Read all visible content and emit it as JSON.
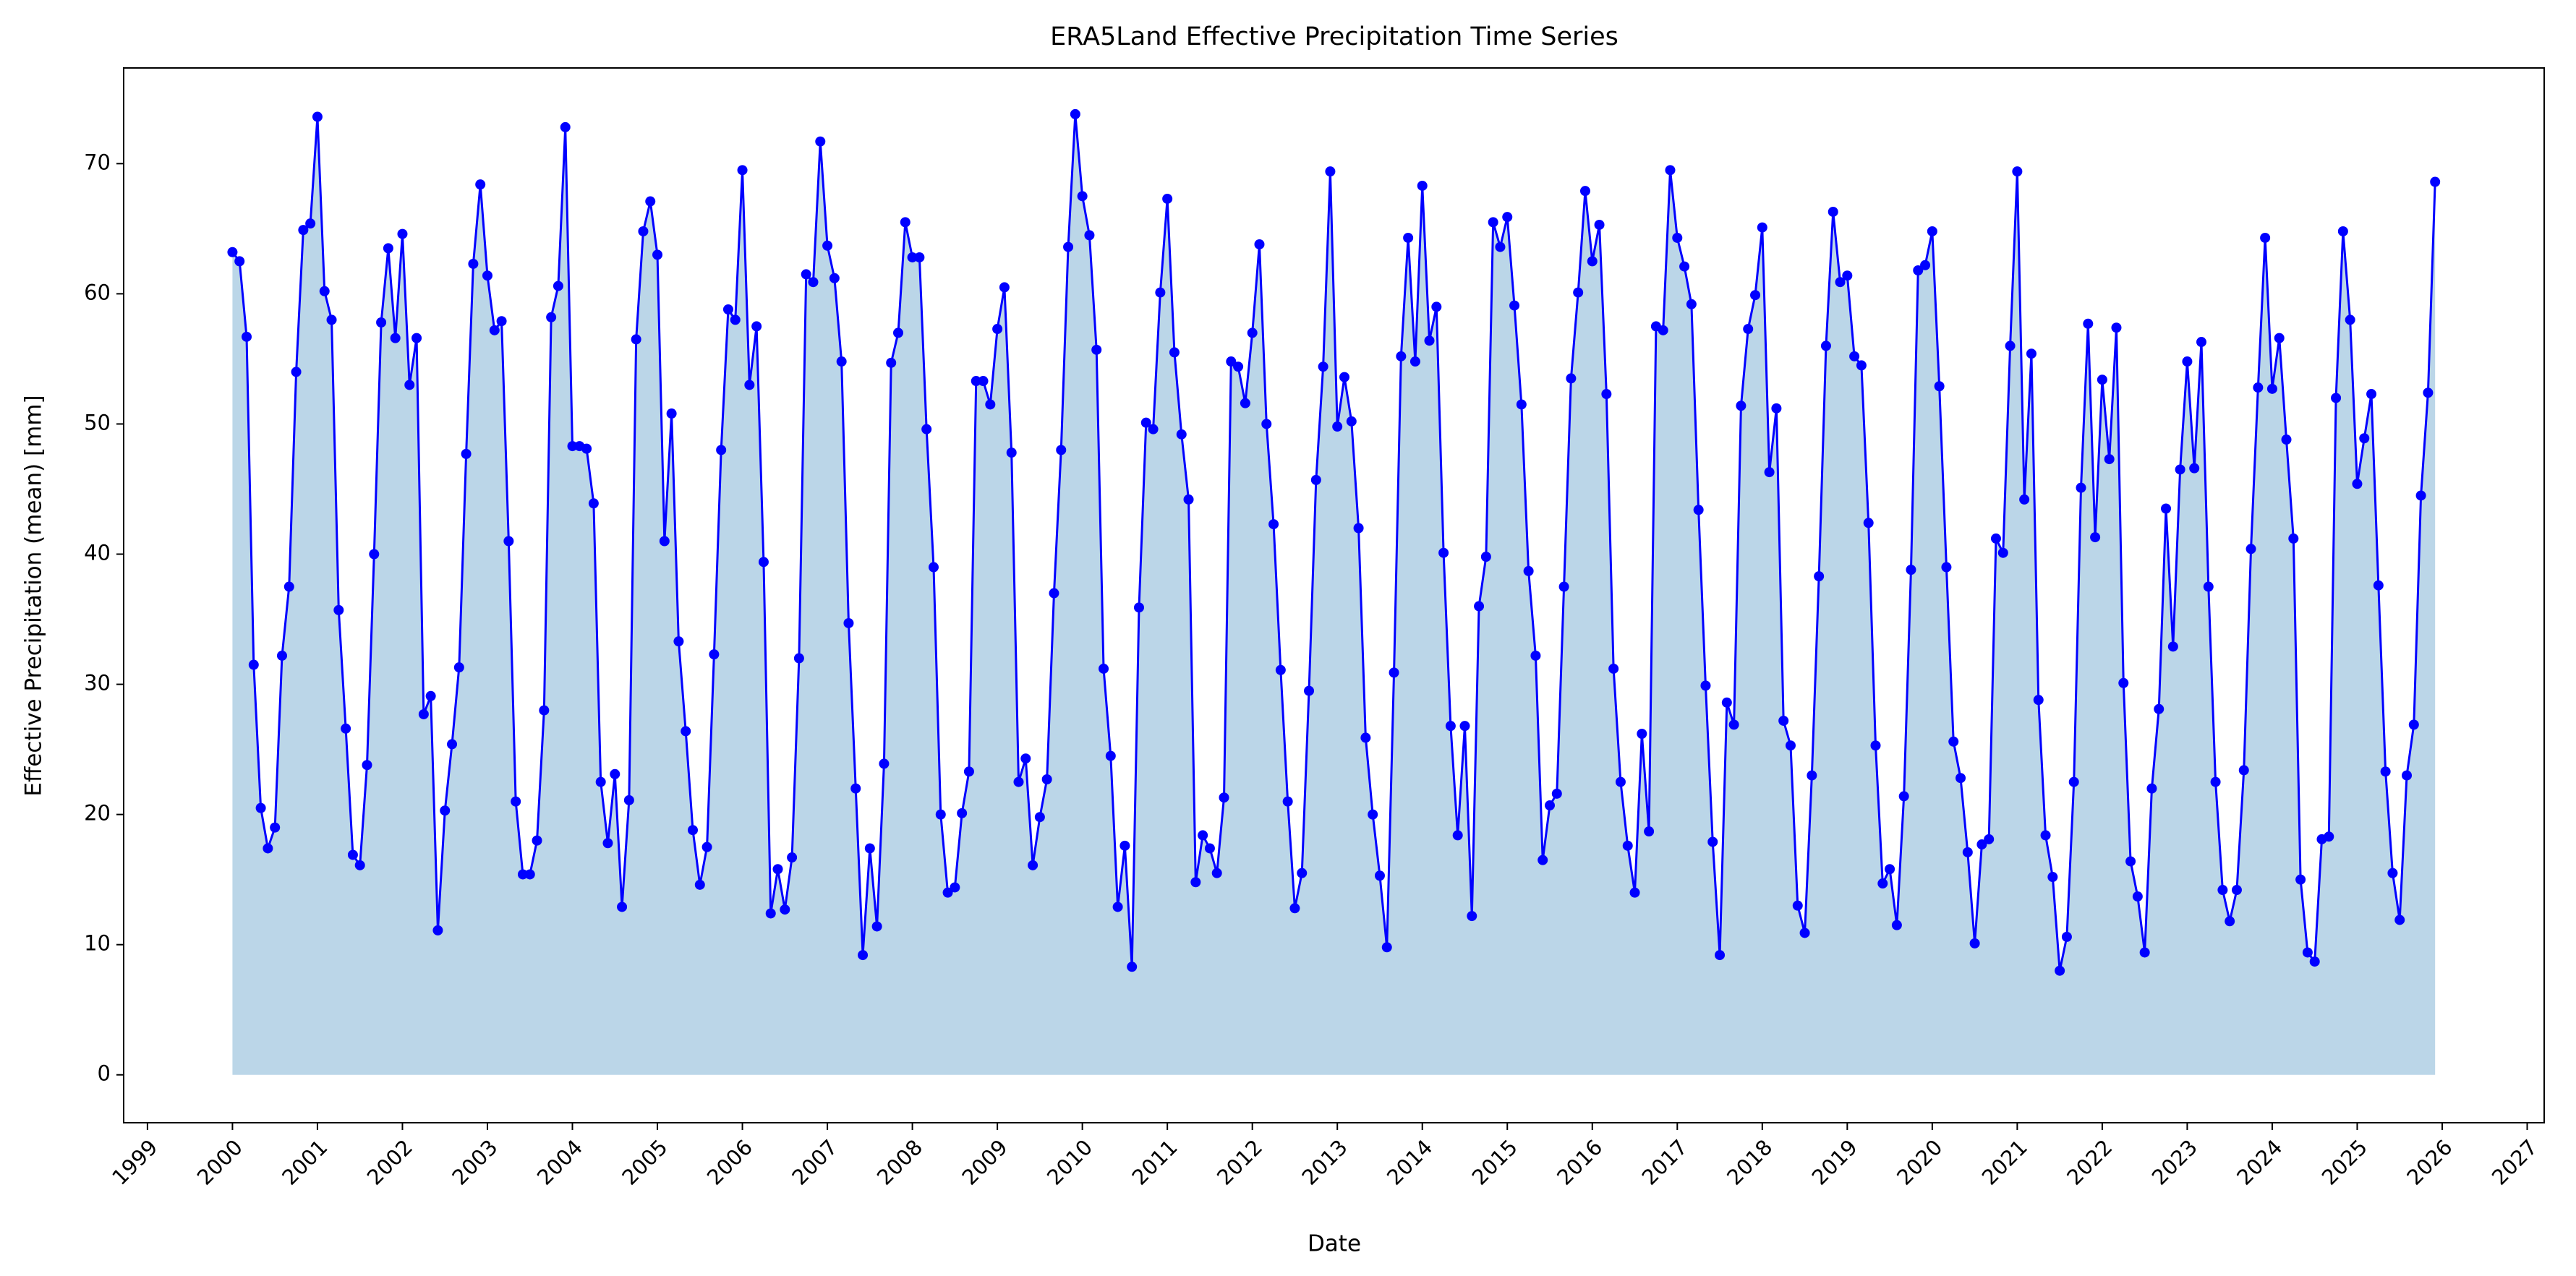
{
  "chart_data": {
    "type": "area-line",
    "title": "ERA5Land Effective Precipitation Time Series",
    "x_label": "Date",
    "y_label": "Effective Precipitation (mean) [mm]",
    "x": [
      "2000-01",
      "2000-02",
      "2000-03",
      "2000-04",
      "2000-05",
      "2000-06",
      "2000-07",
      "2000-08",
      "2000-09",
      "2000-10",
      "2000-11",
      "2000-12",
      "2001-01",
      "2001-02",
      "2001-03",
      "2001-04",
      "2001-05",
      "2001-06",
      "2001-07",
      "2001-08",
      "2001-09",
      "2001-10",
      "2001-11",
      "2001-12",
      "2002-01",
      "2002-02",
      "2002-03",
      "2002-04",
      "2002-05",
      "2002-06",
      "2002-07",
      "2002-08",
      "2002-09",
      "2002-10",
      "2002-11",
      "2002-12",
      "2003-01",
      "2003-02",
      "2003-03",
      "2003-04",
      "2003-05",
      "2003-06",
      "2003-07",
      "2003-08",
      "2003-09",
      "2003-10",
      "2003-11",
      "2003-12",
      "2004-01",
      "2004-02",
      "2004-03",
      "2004-04",
      "2004-05",
      "2004-06",
      "2004-07",
      "2004-08",
      "2004-09",
      "2004-10",
      "2004-11",
      "2004-12",
      "2005-01",
      "2005-02",
      "2005-03",
      "2005-04",
      "2005-05",
      "2005-06",
      "2005-07",
      "2005-08",
      "2005-09",
      "2005-10",
      "2005-11",
      "2005-12",
      "2006-01",
      "2006-02",
      "2006-03",
      "2006-04",
      "2006-05",
      "2006-06",
      "2006-07",
      "2006-08",
      "2006-09",
      "2006-10",
      "2006-11",
      "2006-12",
      "2007-01",
      "2007-02",
      "2007-03",
      "2007-04",
      "2007-05",
      "2007-06",
      "2007-07",
      "2007-08",
      "2007-09",
      "2007-10",
      "2007-11",
      "2007-12",
      "2008-01",
      "2008-02",
      "2008-03",
      "2008-04",
      "2008-05",
      "2008-06",
      "2008-07",
      "2008-08",
      "2008-09",
      "2008-10",
      "2008-11",
      "2008-12",
      "2009-01",
      "2009-02",
      "2009-03",
      "2009-04",
      "2009-05",
      "2009-06",
      "2009-07",
      "2009-08",
      "2009-09",
      "2009-10",
      "2009-11",
      "2009-12",
      "2010-01",
      "2010-02",
      "2010-03",
      "2010-04",
      "2010-05",
      "2010-06",
      "2010-07",
      "2010-08",
      "2010-09",
      "2010-10",
      "2010-11",
      "2010-12",
      "2011-01",
      "2011-02",
      "2011-03",
      "2011-04",
      "2011-05",
      "2011-06",
      "2011-07",
      "2011-08",
      "2011-09",
      "2011-10",
      "2011-11",
      "2011-12",
      "2012-01",
      "2012-02",
      "2012-03",
      "2012-04",
      "2012-05",
      "2012-06",
      "2012-07",
      "2012-08",
      "2012-09",
      "2012-10",
      "2012-11",
      "2012-12",
      "2013-01",
      "2013-02",
      "2013-03",
      "2013-04",
      "2013-05",
      "2013-06",
      "2013-07",
      "2013-08",
      "2013-09",
      "2013-10",
      "2013-11",
      "2013-12",
      "2014-01",
      "2014-02",
      "2014-03",
      "2014-04",
      "2014-05",
      "2014-06",
      "2014-07",
      "2014-08",
      "2014-09",
      "2014-10",
      "2014-11",
      "2014-12",
      "2015-01",
      "2015-02",
      "2015-03",
      "2015-04",
      "2015-05",
      "2015-06",
      "2015-07",
      "2015-08",
      "2015-09",
      "2015-10",
      "2015-11",
      "2015-12",
      "2016-01",
      "2016-02",
      "2016-03",
      "2016-04",
      "2016-05",
      "2016-06",
      "2016-07",
      "2016-08",
      "2016-09",
      "2016-10",
      "2016-11",
      "2016-12",
      "2017-01",
      "2017-02",
      "2017-03",
      "2017-04",
      "2017-05",
      "2017-06",
      "2017-07",
      "2017-08",
      "2017-09",
      "2017-10",
      "2017-11",
      "2017-12",
      "2018-01",
      "2018-02",
      "2018-03",
      "2018-04",
      "2018-05",
      "2018-06",
      "2018-07",
      "2018-08",
      "2018-09",
      "2018-10",
      "2018-11",
      "2018-12",
      "2019-01",
      "2019-02",
      "2019-03",
      "2019-04",
      "2019-05",
      "2019-06",
      "2019-07",
      "2019-08",
      "2019-09",
      "2019-10",
      "2019-11",
      "2019-12",
      "2020-01",
      "2020-02",
      "2020-03",
      "2020-04",
      "2020-05",
      "2020-06",
      "2020-07",
      "2020-08",
      "2020-09",
      "2020-10",
      "2020-11",
      "2020-12",
      "2021-01",
      "2021-02",
      "2021-03",
      "2021-04",
      "2021-05",
      "2021-06",
      "2021-07",
      "2021-08",
      "2021-09",
      "2021-10",
      "2021-11",
      "2021-12",
      "2022-01",
      "2022-02",
      "2022-03",
      "2022-04",
      "2022-05",
      "2022-06",
      "2022-07",
      "2022-08",
      "2022-09",
      "2022-10",
      "2022-11",
      "2022-12",
      "2023-01",
      "2023-02",
      "2023-03",
      "2023-04",
      "2023-05",
      "2023-06",
      "2023-07",
      "2023-08",
      "2023-09",
      "2023-10",
      "2023-11",
      "2023-12",
      "2024-01",
      "2024-02",
      "2024-03",
      "2024-04",
      "2024-05",
      "2024-06",
      "2024-07",
      "2024-08",
      "2024-09",
      "2024-10",
      "2024-11",
      "2024-12",
      "2025-01",
      "2025-02",
      "2025-03",
      "2025-04",
      "2025-05",
      "2025-06",
      "2025-07",
      "2025-08",
      "2025-09",
      "2025-10",
      "2025-11",
      "2025-12"
    ],
    "series": [
      {
        "color": "#0000ff",
        "fill_color": "#1f77b4",
        "fill_opacity": 0.3,
        "values": [
          63.2,
          62.5,
          56.7,
          31.5,
          20.5,
          17.4,
          19.0,
          32.2,
          37.5,
          54.0,
          64.9,
          65.4,
          73.6,
          60.2,
          58.0,
          35.7,
          26.6,
          16.9,
          16.1,
          23.8,
          40.0,
          57.8,
          63.5,
          56.6,
          64.6,
          53.0,
          56.6,
          27.7,
          29.1,
          11.1,
          20.3,
          25.4,
          31.3,
          47.7,
          62.3,
          68.4,
          61.4,
          57.2,
          57.9,
          41.0,
          21.0,
          15.4,
          15.4,
          18.0,
          28.0,
          58.2,
          60.6,
          72.8,
          48.3,
          48.3,
          48.1,
          43.9,
          22.5,
          17.8,
          23.1,
          12.9,
          21.1,
          56.5,
          64.8,
          67.1,
          63.0,
          41.0,
          50.8,
          33.3,
          26.4,
          18.8,
          14.6,
          17.5,
          32.3,
          48.0,
          58.8,
          58.0,
          69.5,
          53.0,
          57.5,
          39.4,
          12.4,
          15.8,
          12.7,
          16.7,
          32.0,
          61.5,
          60.9,
          71.7,
          63.7,
          61.2,
          54.8,
          34.7,
          22.0,
          9.2,
          17.4,
          11.4,
          23.9,
          54.7,
          57.0,
          65.5,
          62.8,
          62.8,
          49.6,
          39.0,
          20.0,
          14.0,
          14.4,
          20.1,
          23.3,
          53.3,
          53.3,
          51.5,
          57.3,
          60.5,
          47.8,
          22.5,
          24.3,
          16.1,
          19.8,
          22.7,
          37.0,
          48.0,
          63.6,
          73.8,
          67.5,
          64.5,
          55.7,
          31.2,
          24.5,
          12.9,
          17.6,
          8.3,
          35.9,
          50.1,
          49.6,
          60.1,
          67.3,
          55.5,
          49.2,
          44.2,
          14.8,
          18.4,
          17.4,
          15.5,
          21.3,
          54.8,
          54.4,
          51.6,
          57.0,
          63.8,
          50.0,
          42.3,
          31.1,
          21.0,
          12.8,
          15.5,
          29.5,
          45.7,
          54.4,
          69.4,
          49.8,
          53.6,
          50.2,
          42.0,
          25.9,
          20.0,
          15.3,
          9.8,
          30.9,
          55.2,
          64.3,
          54.8,
          68.3,
          56.4,
          59.0,
          40.1,
          26.8,
          18.4,
          26.8,
          12.2,
          36.0,
          39.8,
          65.5,
          63.6,
          65.9,
          59.1,
          51.5,
          38.7,
          32.2,
          16.5,
          20.7,
          21.6,
          37.5,
          53.5,
          60.1,
          67.9,
          62.5,
          65.3,
          52.3,
          31.2,
          22.5,
          17.6,
          14.0,
          26.2,
          18.7,
          57.5,
          57.2,
          69.5,
          64.3,
          62.1,
          59.2,
          43.4,
          29.9,
          17.9,
          9.2,
          28.6,
          26.9,
          51.4,
          57.3,
          59.9,
          65.1,
          46.3,
          51.2,
          27.2,
          25.3,
          13.0,
          10.9,
          23.0,
          38.3,
          56.0,
          66.3,
          60.9,
          61.4,
          55.2,
          54.5,
          42.4,
          25.3,
          14.7,
          15.8,
          11.5,
          21.4,
          38.8,
          61.8,
          62.2,
          64.8,
          52.9,
          39.0,
          25.6,
          22.8,
          17.1,
          10.1,
          17.7,
          18.1,
          41.2,
          40.1,
          56.0,
          69.4,
          44.2,
          55.4,
          28.8,
          18.4,
          15.2,
          8.0,
          10.6,
          22.5,
          45.1,
          57.7,
          41.3,
          53.4,
          47.3,
          57.4,
          30.1,
          16.4,
          13.7,
          9.4,
          22.0,
          28.1,
          43.5,
          32.9,
          46.5,
          54.8,
          46.6,
          56.3,
          37.5,
          22.5,
          14.2,
          11.8,
          14.2,
          23.4,
          40.4,
          52.8,
          64.3,
          52.7,
          56.6,
          48.8,
          41.2,
          15.0,
          9.4,
          8.7,
          18.1,
          18.3,
          52.0,
          64.8,
          58.0,
          45.4,
          48.9,
          52.3,
          37.6,
          23.3,
          15.5,
          11.9,
          23.0,
          26.9,
          44.5,
          52.4,
          68.6
        ]
      }
    ],
    "xlim": [
      1998.72,
      2027.2
    ],
    "xticks": [
      1999,
      2000,
      2001,
      2002,
      2003,
      2004,
      2005,
      2006,
      2007,
      2008,
      2009,
      2010,
      2011,
      2012,
      2013,
      2014,
      2015,
      2016,
      2017,
      2018,
      2019,
      2020,
      2021,
      2022,
      2023,
      2024,
      2025,
      2026,
      2027
    ],
    "ylim": [
      -3.68,
      77.35
    ],
    "yticks": [
      0,
      10,
      20,
      30,
      40,
      50,
      60,
      70
    ],
    "grid": false
  }
}
